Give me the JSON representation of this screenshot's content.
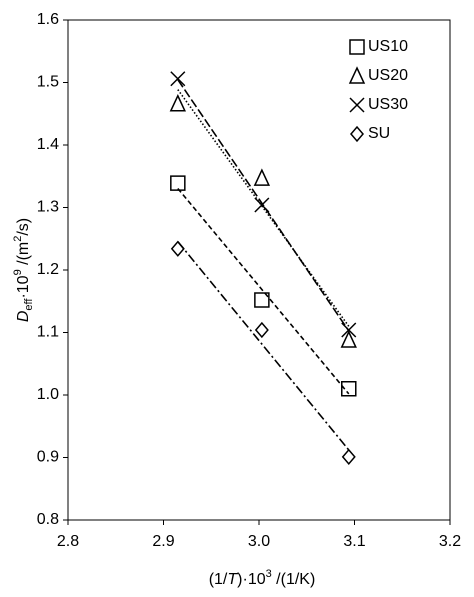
{
  "chart_data": {
    "type": "scatter",
    "xlabel": [
      "(1/",
      "T",
      ")·10",
      "3",
      " /(1/K)"
    ],
    "ylabel": [
      "D",
      "eff",
      "·10",
      "9",
      " /(m",
      "2",
      "/s)"
    ],
    "xlim": [
      2.8,
      3.2
    ],
    "xticks": [
      2.8,
      2.9,
      {
        "value": 3,
        "label": "3.0"
      },
      3.1,
      3.2
    ],
    "ylim": [
      0.8,
      1.6
    ],
    "yticks": [
      0.8,
      0.9,
      {
        "value": 1,
        "label": "1.0"
      },
      1.1,
      1.2,
      1.3,
      1.4,
      1.5,
      1.6
    ],
    "grid": false,
    "legend": "upper right",
    "trendlines": true,
    "series": [
      {
        "name": "US10",
        "marker": "square",
        "dash": "dashed",
        "color": "#000000",
        "x": [
          2.915,
          3.003,
          3.094
        ],
        "values": [
          1.339,
          1.152,
          1.01
        ]
      },
      {
        "name": "US20",
        "marker": "triangle",
        "dash": "dotted",
        "color": "#000000",
        "x": [
          2.915,
          3.003,
          3.094
        ],
        "values": [
          1.466,
          1.347,
          1.088
        ]
      },
      {
        "name": "US30",
        "marker": "x",
        "dash": "longdash",
        "color": "#000000",
        "x": [
          2.915,
          3.003,
          3.094
        ],
        "values": [
          1.506,
          1.304,
          1.104
        ]
      },
      {
        "name": "SU",
        "marker": "diamond",
        "dash": "dashdot",
        "color": "#000000",
        "x": [
          2.915,
          3.003,
          3.094
        ],
        "values": [
          1.234,
          1.104,
          0.901
        ]
      }
    ]
  }
}
